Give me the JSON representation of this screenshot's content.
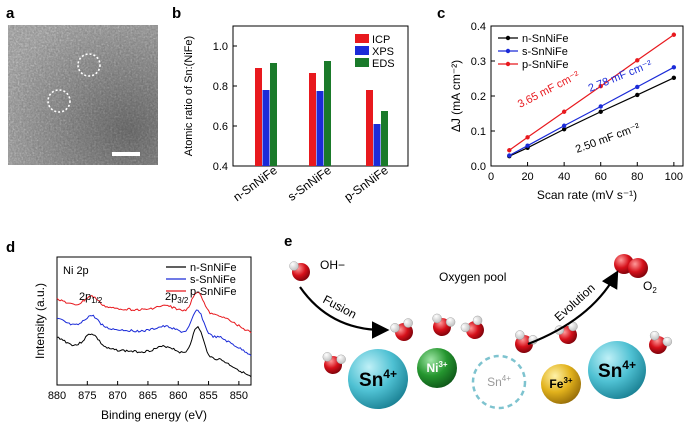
{
  "panel_labels": {
    "a": "a",
    "b": "b",
    "c": "c",
    "d": "d",
    "e": "e"
  },
  "colors": {
    "red": "#e8191e",
    "blue": "#1b2bd8",
    "green": "#1a7a2a",
    "black": "#000000",
    "cyan": "#3fb6c9",
    "ni_green": "#1e8c2e",
    "fe_gold": "#e2b21c",
    "molecule_red": "#d6101a"
  },
  "chart_data": [
    {
      "id": "b",
      "type": "bar",
      "ylabel": "Atomic ratio of Sn:(NiFe)",
      "categories": [
        "n-SnNiFe",
        "s-SnNiFe",
        "p-SnNiFe"
      ],
      "series": [
        {
          "name": "ICP",
          "values": [
            0.89,
            0.865,
            0.78
          ]
        },
        {
          "name": "XPS",
          "values": [
            0.78,
            0.775,
            0.61
          ]
        },
        {
          "name": "EDS",
          "values": [
            0.915,
            0.925,
            0.675
          ]
        }
      ],
      "ylim": [
        0.4,
        1.1
      ],
      "yticks": [
        "0.4",
        "0.6",
        "0.8",
        "1.0"
      ],
      "legend": "top-right"
    },
    {
      "id": "c",
      "type": "line",
      "xlabel": "Scan rate (mV s⁻¹)",
      "ylabel": "ΔJ (mA cm⁻²)",
      "xlim": [
        0,
        105
      ],
      "ylim": [
        0,
        0.4
      ],
      "xticks": [
        "0",
        "20",
        "40",
        "60",
        "80",
        "100"
      ],
      "yticks": [
        "0.0",
        "0.1",
        "0.2",
        "0.3",
        "0.4"
      ],
      "series": [
        {
          "name": "n-SnNiFe",
          "x": [
            10,
            20,
            40,
            60,
            80,
            100
          ],
          "y": [
            0.028,
            0.052,
            0.105,
            0.155,
            0.203,
            0.252
          ],
          "annotation": "2.50 mF cm⁻²"
        },
        {
          "name": "s-SnNiFe",
          "x": [
            10,
            20,
            40,
            60,
            80,
            100
          ],
          "y": [
            0.03,
            0.058,
            0.115,
            0.17,
            0.226,
            0.282
          ],
          "annotation": "2.78 mF cm⁻²"
        },
        {
          "name": "p-SnNiFe",
          "x": [
            10,
            20,
            40,
            60,
            80,
            100
          ],
          "y": [
            0.045,
            0.082,
            0.155,
            0.228,
            0.302,
            0.375
          ],
          "annotation": "3.65 mF cm⁻²"
        }
      ],
      "legend": "top-left"
    },
    {
      "id": "d",
      "type": "line",
      "title": "Ni 2p",
      "xlabel": "Binding energy (eV)",
      "ylabel": "Intensity (a.u.)",
      "xlim": [
        880,
        848
      ],
      "xticks": [
        "880",
        "875",
        "870",
        "865",
        "860",
        "855",
        "850"
      ],
      "series": [
        {
          "name": "n-SnNiFe"
        },
        {
          "name": "s-SnNiFe"
        },
        {
          "name": "p-SnNiFe"
        }
      ],
      "annotations": [
        "2p1/2",
        "2p3/2"
      ],
      "peaks_ev": [
        874.3,
        856.8
      ],
      "legend": "top-right"
    }
  ],
  "panel_e": {
    "hydroxide_label": "OH−",
    "fusion_label": "Fusion",
    "pool_label": "Oxygen pool",
    "evolution_label": "Evolution",
    "o2_label": "O",
    "o2_sub": "2",
    "ions": {
      "sn_left": "Sn",
      "ni": "Ni",
      "sn_vacancy": "Sn",
      "fe": "Fe",
      "sn_right": "Sn"
    },
    "charges": {
      "sn4": "4+",
      "ni3": "3+",
      "fe3": "3+"
    }
  }
}
